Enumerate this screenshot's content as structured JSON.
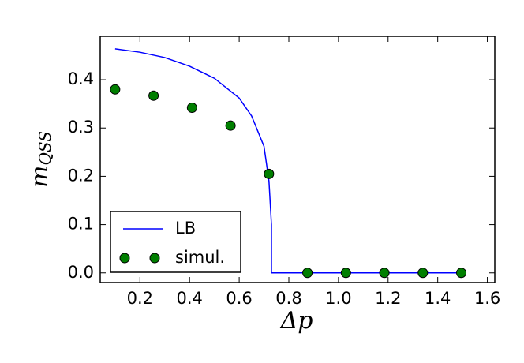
{
  "chart_data": {
    "type": "line_scatter",
    "x_label": "Δp",
    "y_label": {
      "main": "m",
      "subscript": "QSS"
    },
    "xlim": [
      0.04,
      1.63
    ],
    "ylim": [
      -0.02,
      0.49
    ],
    "xticks": [
      0.2,
      0.4,
      0.6,
      0.8,
      {
        "value": 1,
        "label": "1.0"
      },
      1.2,
      1.4,
      1.6
    ],
    "yticks": [
      {
        "value": 0,
        "label": "0.0"
      },
      0.1,
      0.2,
      0.3,
      0.4
    ],
    "legend": "lower left",
    "series": [
      {
        "name": "LB",
        "kind": "line",
        "color": "#0000ff",
        "x": [
          0.1,
          0.2,
          0.3,
          0.4,
          0.5,
          0.6,
          0.65,
          0.7,
          0.72,
          0.73,
          0.73,
          1.5
        ],
        "values": [
          0.464,
          0.457,
          0.446,
          0.428,
          0.403,
          0.362,
          0.325,
          0.262,
          0.19,
          0.1,
          0,
          0
        ]
      },
      {
        "name": "simul.",
        "kind": "scatter",
        "color": "#007f00",
        "x": [
          0.1,
          0.255,
          0.41,
          0.565,
          0.72,
          0.875,
          1.03,
          1.185,
          1.34,
          1.495
        ],
        "values": [
          0.38,
          0.367,
          0.342,
          0.305,
          0.205,
          0,
          0,
          0,
          0,
          0
        ]
      }
    ]
  }
}
